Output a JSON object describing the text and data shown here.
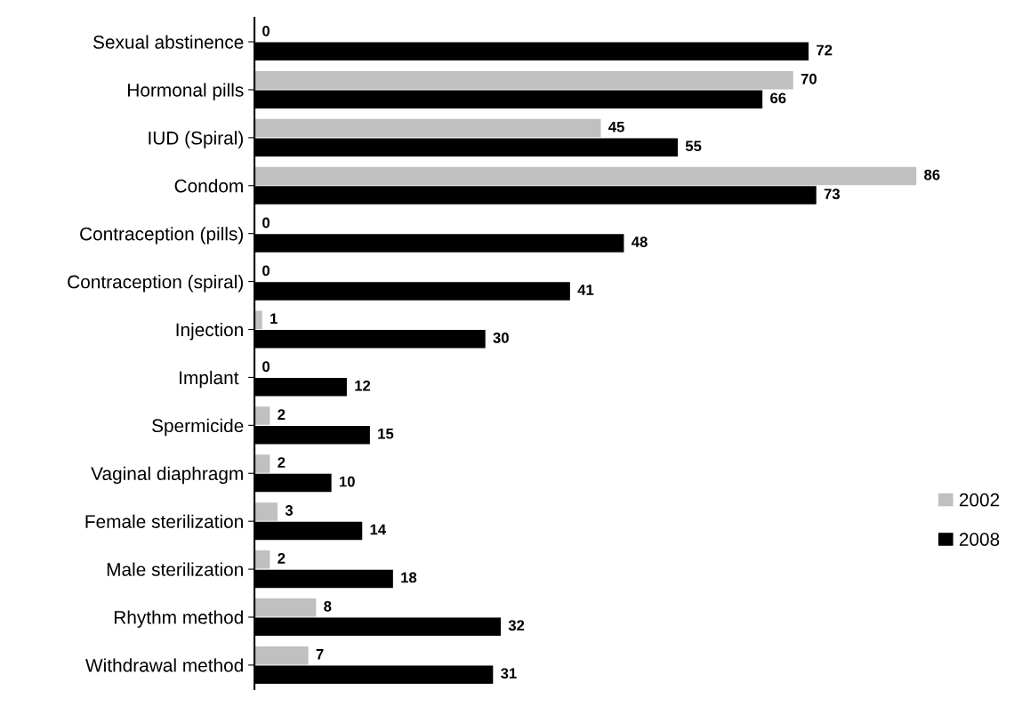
{
  "chart_data": {
    "type": "bar",
    "orientation": "horizontal",
    "categories": [
      "Sexual abstinence",
      "Hormonal pills",
      "IUD (Spiral)",
      "Condom",
      "Contraception (pills)",
      "Contraception (spiral)",
      "Injection",
      "Implant ",
      "Spermicide",
      "Vaginal diaphragm",
      "Female sterilization",
      "Male sterilization",
      "Rhythm method",
      "Withdrawal method"
    ],
    "series": [
      {
        "name": "2002",
        "color": "#c0c0c0",
        "values": [
          0,
          70,
          45,
          86,
          0,
          0,
          1,
          0,
          2,
          2,
          3,
          2,
          8,
          7
        ]
      },
      {
        "name": "2008",
        "color": "#000000",
        "values": [
          72,
          66,
          55,
          73,
          48,
          41,
          30,
          12,
          15,
          10,
          14,
          18,
          32,
          31
        ]
      }
    ],
    "data_labels": true,
    "legend": "right",
    "grid": false,
    "tick_labels": "y"
  }
}
